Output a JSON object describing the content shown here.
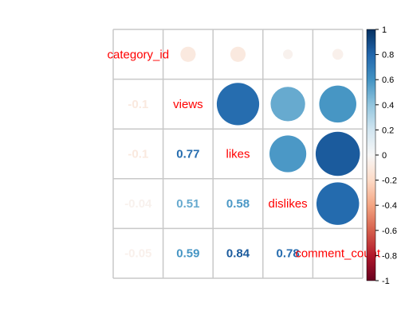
{
  "chart_data": {
    "type": "heatmap",
    "variables": [
      "category_id",
      "views",
      "likes",
      "dislikes",
      "comment_count"
    ],
    "correlation_matrix": [
      [
        1.0,
        -0.1,
        -0.1,
        -0.04,
        -0.05
      ],
      [
        -0.1,
        1.0,
        0.77,
        0.51,
        0.59
      ],
      [
        -0.1,
        0.77,
        1.0,
        0.58,
        0.84
      ],
      [
        -0.04,
        0.51,
        0.58,
        1.0,
        0.78
      ],
      [
        -0.05,
        0.59,
        0.84,
        0.78,
        1.0
      ]
    ],
    "lower_labels": [
      {
        "row": 1,
        "col": 0,
        "text": "-0.1"
      },
      {
        "row": 2,
        "col": 0,
        "text": "-0.1"
      },
      {
        "row": 2,
        "col": 1,
        "text": "0.77"
      },
      {
        "row": 3,
        "col": 0,
        "text": "-0.04"
      },
      {
        "row": 3,
        "col": 1,
        "text": "0.51"
      },
      {
        "row": 3,
        "col": 2,
        "text": "0.58"
      },
      {
        "row": 4,
        "col": 0,
        "text": "-0.05"
      },
      {
        "row": 4,
        "col": 1,
        "text": "0.59"
      },
      {
        "row": 4,
        "col": 2,
        "text": "0.84"
      },
      {
        "row": 4,
        "col": 3,
        "text": "0.78"
      }
    ],
    "upper_method": "circle",
    "lower_method": "number",
    "colorbar": {
      "range": [
        -1,
        1
      ],
      "ticks": [
        "1",
        "0.8",
        "0.6",
        "0.4",
        "0.2",
        "0",
        "-0.2",
        "-0.4",
        "-0.6",
        "-0.8",
        "-1"
      ]
    },
    "color_scale": {
      "negative": "#67001f",
      "neutral": "#f7f7f7",
      "positive": "#053061"
    },
    "grid": true
  }
}
